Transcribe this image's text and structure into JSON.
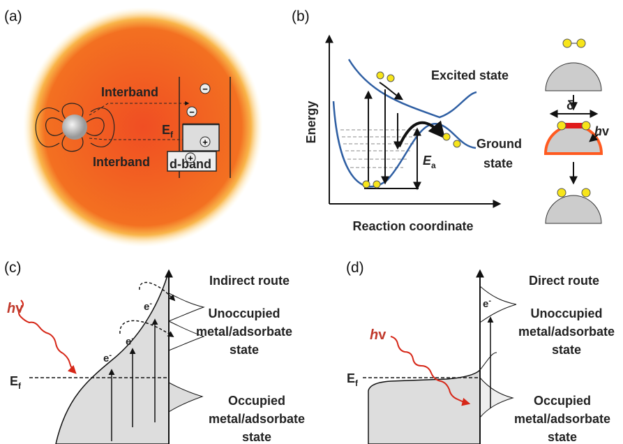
{
  "panel_a": {
    "label": "(a)",
    "interband_top": "Interband",
    "interband_bottom": "Interband",
    "fermi": {
      "symbol": "E",
      "subscript": "f"
    },
    "d_band": "d-band",
    "charges": [
      "−",
      "−",
      "+",
      "+"
    ]
  },
  "panel_b": {
    "label": "(b)",
    "y_axis": "Energy",
    "x_axis": "Reaction coordinate",
    "excited": "Excited state",
    "ground": [
      "Ground",
      "state"
    ],
    "activation": {
      "symbol": "E",
      "subscript": "a"
    },
    "charge": {
      "symbol": "δ",
      "superscript": "-"
    },
    "light": {
      "h": "h",
      "v": "v"
    }
  },
  "panel_c": {
    "label": "(c)",
    "title": "Indirect route",
    "unoccupied": [
      "Unoccupied",
      "metal/adsorbate",
      "state"
    ],
    "occupied": [
      "Occupied",
      "metal/adsorbate",
      "state"
    ],
    "light": {
      "h": "h",
      "v": "v"
    },
    "fermi": {
      "symbol": "E",
      "subscript": "f"
    },
    "electrons": [
      {
        "symbol": "e",
        "superscript": "-"
      },
      {
        "symbol": "e",
        "superscript": "-"
      },
      {
        "symbol": "e",
        "superscript": "-"
      }
    ]
  },
  "panel_d": {
    "label": "(d)",
    "title": "Direct route",
    "unoccupied": [
      "Unoccupied",
      "metal/adsorbate",
      "state"
    ],
    "occupied": [
      "Occupied",
      "metal/adsorbate",
      "state"
    ],
    "light": {
      "h": "h",
      "v": "v"
    },
    "fermi": {
      "symbol": "E",
      "subscript": "f"
    },
    "electron": {
      "symbol": "e",
      "superscript": "-"
    }
  }
}
